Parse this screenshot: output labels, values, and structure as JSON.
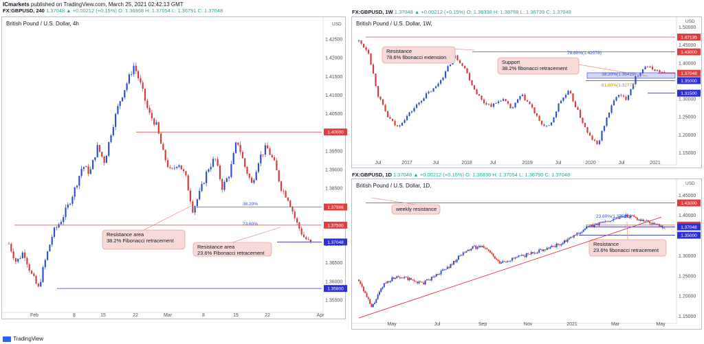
{
  "header": {
    "publisher": "ICmarkets",
    "published_text": "published on TradingView.com, March 25, 2021 02:42:13 GMT",
    "main_symbol": "FX:GBPUSD, 240",
    "main_values": "1.37048 ▲ +0.00212 (+0.15%) O: 1.36968 H: 1.37054 L: 1.36791 C: 1.37048"
  },
  "weekly_header": {
    "symbol": "FX:GBPUSD, 1W",
    "values": "1.37048 ▲ +0.00212 (+0.15%) O: 1.38338 H: 1.38768 L: 1.36739 C: 1.37048"
  },
  "daily_header": {
    "symbol": "FX:GBPUSD, 1D",
    "values": "1.37048 ▲ +0.00212 (+0.15%) O: 1.36836 H: 1.37054 L: 1.36790 C: 1.37048"
  },
  "footer": {
    "brand": "TradingView"
  },
  "chart_data": [
    {
      "type": "candlestick",
      "title": "British Pound / U.S. Dollar, 4h",
      "currency": "USD",
      "ylim": [
        1.3525,
        1.4275
      ],
      "y_ticks": [
        1.355,
        1.36,
        1.365,
        1.37,
        1.375,
        1.38,
        1.385,
        1.39,
        1.395,
        1.4,
        1.405,
        1.41,
        1.415,
        1.42,
        1.425
      ],
      "x_ticks": [
        "Feb",
        "8",
        "15",
        "22",
        "Mar",
        "8",
        "15",
        "22",
        "Apr"
      ],
      "close_path": [
        1.37,
        1.365,
        1.368,
        1.362,
        1.358,
        1.366,
        1.373,
        1.376,
        1.38,
        1.385,
        1.391,
        1.389,
        1.396,
        1.392,
        1.401,
        1.408,
        1.413,
        1.418,
        1.412,
        1.405,
        1.402,
        1.394,
        1.389,
        1.392,
        1.388,
        1.379,
        1.384,
        1.39,
        1.393,
        1.385,
        1.389,
        1.398,
        1.391,
        1.386,
        1.393,
        1.396,
        1.392,
        1.385,
        1.382,
        1.376,
        1.372,
        1.37
      ],
      "levels": [
        {
          "price": 1.4,
          "label": "1.40000",
          "color": "#e03e3e"
        },
        {
          "price": 1.37986,
          "label": "1.37986",
          "color": "#e03e3e"
        },
        {
          "price": 1.375,
          "label": "1.37500",
          "color": "#e03e3e"
        },
        {
          "price": 1.37048,
          "label": "1.37048",
          "color": "#2f2fd6"
        },
        {
          "price": 1.358,
          "label": "1.35800",
          "color": "#2f2fd6"
        }
      ],
      "fib_labels": [
        "38.20%",
        "23.60%"
      ],
      "annotations": [
        {
          "text": [
            "Resistance area",
            "38.2% Fibonacci retracement"
          ]
        },
        {
          "text": [
            "Resistance area",
            "23.6% Fibonacci retracement"
          ]
        }
      ]
    },
    {
      "type": "candlestick",
      "title": "British Pound / U.S. Dollar, 1W,",
      "currency": "USD",
      "ylim": [
        1.125,
        1.5
      ],
      "y_ticks": [
        1.15,
        1.2,
        1.25,
        1.3,
        1.35,
        1.4,
        1.45,
        1.5
      ],
      "x_ticks": [
        "Jul",
        "2017",
        "Jul",
        "2018",
        "Jul",
        "2019",
        "Jul",
        "2020",
        "Jul",
        "2021"
      ],
      "close_path": [
        1.46,
        1.43,
        1.31,
        1.25,
        1.22,
        1.25,
        1.28,
        1.31,
        1.33,
        1.37,
        1.42,
        1.39,
        1.33,
        1.29,
        1.28,
        1.3,
        1.27,
        1.31,
        1.28,
        1.23,
        1.22,
        1.29,
        1.32,
        1.26,
        1.2,
        1.17,
        1.25,
        1.31,
        1.3,
        1.36,
        1.39,
        1.38,
        1.37
      ],
      "levels": [
        {
          "price": 1.47135,
          "label": "1.47135",
          "color": "#e03e3e"
        },
        {
          "price": 1.43,
          "label": "1.43000",
          "color": "#e03e3e"
        },
        {
          "price": 1.37048,
          "label": "1.37048",
          "color": "#e03e3e"
        },
        {
          "price": 1.35,
          "label": "1.35000",
          "color": "#2f2fd6"
        },
        {
          "price": 1.315,
          "label": "1.31500",
          "color": "#2f2fd6"
        }
      ],
      "fib_labels": [
        "78.60%(1.42078)",
        "38.20%(1.36419)",
        "61.80%(1.32772)"
      ],
      "annotations": [
        {
          "text": [
            "Resistance",
            "78.6% fibonacci extension"
          ]
        },
        {
          "text": [
            "Support",
            "38.2% fibonacci retracement"
          ]
        }
      ]
    },
    {
      "type": "candlestick",
      "title": "British Pound / U.S. Dollar, 1D,",
      "currency": "USD",
      "ylim": [
        1.14,
        1.465
      ],
      "y_ticks": [
        1.15,
        1.2,
        1.25,
        1.3,
        1.35,
        1.4,
        1.45
      ],
      "x_ticks": [
        "May",
        "Jul",
        "Sep",
        "Nov",
        "2021",
        "Mar",
        "May"
      ],
      "close_path": [
        1.24,
        1.17,
        1.23,
        1.25,
        1.24,
        1.23,
        1.25,
        1.27,
        1.3,
        1.32,
        1.32,
        1.28,
        1.29,
        1.3,
        1.31,
        1.32,
        1.33,
        1.35,
        1.37,
        1.38,
        1.39,
        1.4,
        1.39,
        1.38,
        1.37
      ],
      "levels": [
        {
          "price": 1.43,
          "label": "1.43000",
          "color": "#e03e3e"
        },
        {
          "price": 1.375,
          "label": "1.37500",
          "color": "#e03e3e"
        },
        {
          "price": 1.37048,
          "label": "1.37048",
          "color": "#2f2fd6"
        },
        {
          "price": 1.35,
          "label": "1.35000",
          "color": "#2f2fd6"
        }
      ],
      "fib_labels": [
        "23.60%(1.37512)"
      ],
      "annotations": [
        {
          "text": [
            "weekly resistance"
          ]
        },
        {
          "text": [
            "Resistance",
            "23.6% fibonacci retracement"
          ]
        }
      ]
    }
  ]
}
